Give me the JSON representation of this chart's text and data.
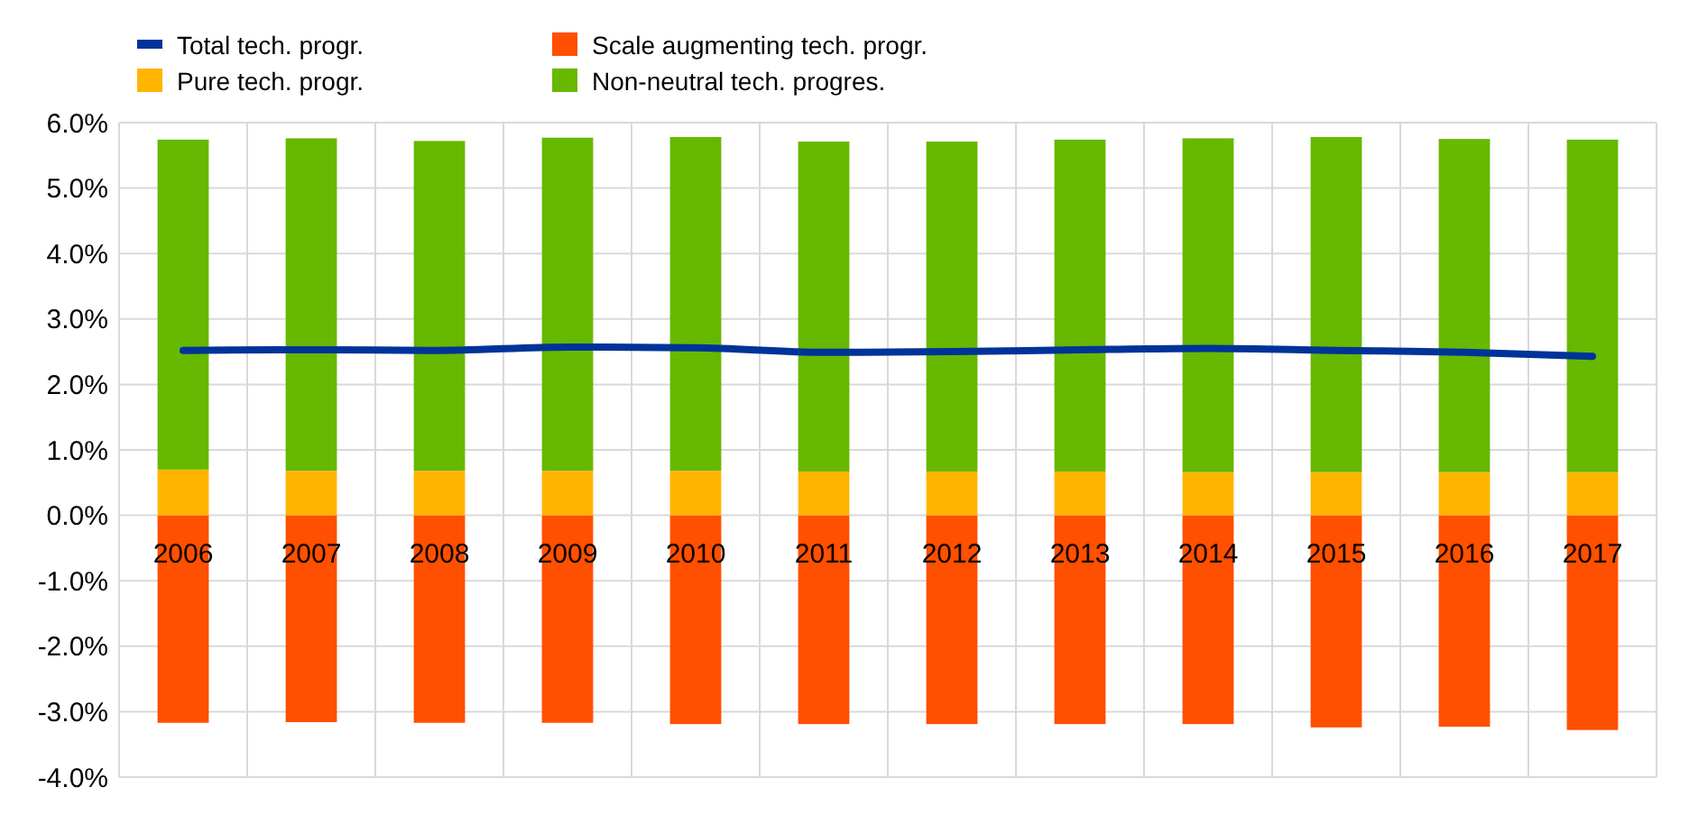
{
  "chart_data": {
    "type": "bar",
    "stacked": true,
    "categories": [
      "2006",
      "2007",
      "2008",
      "2009",
      "2010",
      "2011",
      "2012",
      "2013",
      "2014",
      "2015",
      "2016",
      "2017"
    ],
    "series": [
      {
        "name": "Scale augmenting tech. progr.",
        "color": "#ff4f00",
        "values": [
          -3.17,
          -3.16,
          -3.17,
          -3.17,
          -3.19,
          -3.19,
          -3.19,
          -3.19,
          -3.19,
          -3.24,
          -3.23,
          -3.28
        ]
      },
      {
        "name": "Pure tech. progr.",
        "color": "#ffb400",
        "values": [
          0.7,
          0.68,
          0.68,
          0.68,
          0.68,
          0.67,
          0.67,
          0.67,
          0.66,
          0.66,
          0.66,
          0.66
        ]
      },
      {
        "name": "Non-neutral tech. progres.",
        "color": "#66b800",
        "values": [
          5.04,
          5.08,
          5.04,
          5.09,
          5.1,
          5.04,
          5.04,
          5.07,
          5.1,
          5.12,
          5.09,
          5.08
        ]
      },
      {
        "name": "Total tech. progr.",
        "type": "line",
        "color": "#003399",
        "values": [
          2.52,
          2.53,
          2.52,
          2.57,
          2.56,
          2.49,
          2.5,
          2.53,
          2.55,
          2.52,
          2.49,
          2.43
        ]
      }
    ],
    "ylim": [
      -4,
      6
    ],
    "yticks": [
      {
        "value": -4,
        "label": "-4.0%"
      },
      {
        "value": -3,
        "label": "-3.0%"
      },
      {
        "value": -2,
        "label": "-2.0%"
      },
      {
        "value": -1,
        "label": "-1.0%"
      },
      {
        "value": 0,
        "label": "0.0%"
      },
      {
        "value": 1,
        "label": "1.0%"
      },
      {
        "value": 2,
        "label": "2.0%"
      },
      {
        "value": 3,
        "label": "3.0%"
      },
      {
        "value": 4,
        "label": "4.0%"
      },
      {
        "value": 5,
        "label": "5.0%"
      },
      {
        "value": 6,
        "label": "6.0%"
      }
    ],
    "grid": true,
    "legend": "top left"
  }
}
